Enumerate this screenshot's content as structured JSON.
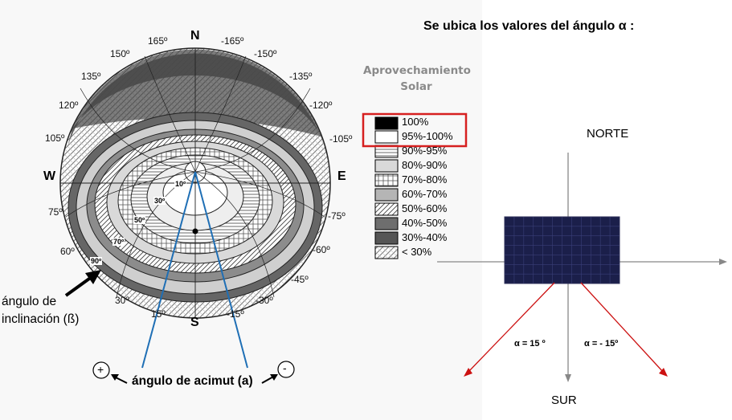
{
  "heading": "Se ubica los valores del ángulo α :",
  "legend": {
    "title_line1": "Aprovechamiento",
    "title_line2": "Solar",
    "items": [
      "100%",
      "95%-100%",
      "90%-95%",
      "80%-90%",
      "70%-80%",
      "60%-70%",
      "50%-60%",
      "40%-50%",
      "30%-40%",
      "< 30%"
    ]
  },
  "sundial": {
    "cardinals": {
      "n": "N",
      "s": "S",
      "e": "E",
      "w": "W"
    },
    "azimuth_labels": [
      "165º",
      "-165º",
      "150º",
      "-150º",
      "135º",
      "-135º",
      "120º",
      "-120º",
      "105º",
      "-105º",
      "75º",
      "-75º",
      "60º",
      "-60º",
      "-45º",
      "30º",
      "-30º",
      "15º",
      "-15º"
    ],
    "ring_labels": [
      "10º",
      "30º",
      "50º",
      "70º",
      "90º"
    ],
    "inclination_label_line1": "ángulo de",
    "inclination_label_line2": "inclinación (ß)",
    "azimuth_label": "ángulo de acimut (a)",
    "plus": "+",
    "minus": "-"
  },
  "orientation": {
    "north": "NORTE",
    "south": "SUR",
    "alpha_pos": "α = 15 º",
    "alpha_neg": "α = - 15º"
  },
  "colors": {
    "accent_red": "#d62020",
    "arrow_red": "#cc1111",
    "ray_blue": "#1f6fb5",
    "panel_blue": "#1b1f4a"
  }
}
